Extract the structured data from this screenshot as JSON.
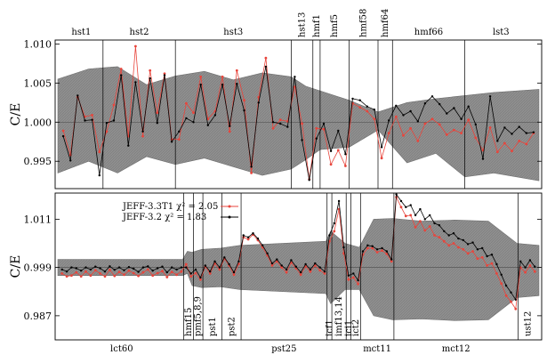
{
  "chart_data": [
    {
      "panel": "top",
      "type": "line",
      "ylabel": "C/E",
      "ylim": [
        0.9915,
        1.0105
      ],
      "yticks": [
        0.995,
        1.0,
        1.005,
        1.01
      ],
      "ytick_labels": [
        "0.995",
        "1.000",
        "1.005",
        "1.010"
      ],
      "grid": false,
      "reference_line": 1.0,
      "group_labels_position": "top",
      "groups": [
        {
          "label": "hst1",
          "start": 0,
          "end": 6
        },
        {
          "label": "hst2",
          "start": 6,
          "end": 16
        },
        {
          "label": "hst3",
          "start": 16,
          "end": 32
        },
        {
          "label": "hst13",
          "start": 32,
          "end": 35
        },
        {
          "label": "hmf1",
          "start": 35,
          "end": 36
        },
        {
          "label": "hmf5",
          "start": 36,
          "end": 40
        },
        {
          "label": "hmf58",
          "start": 40,
          "end": 44
        },
        {
          "label": "hmf64",
          "start": 44,
          "end": 46
        },
        {
          "label": "hmf66",
          "start": 46,
          "end": 56
        },
        {
          "label": "lst3",
          "start": 56,
          "end": 66
        }
      ],
      "uncertainty_band": {
        "x": [
          0,
          4,
          8,
          12,
          16,
          20,
          24,
          28,
          32,
          34,
          36,
          40,
          44,
          48,
          52,
          56,
          60,
          65
        ],
        "upper": [
          1.0055,
          1.0068,
          1.0071,
          1.0048,
          1.0059,
          1.0065,
          1.0054,
          1.0063,
          1.0058,
          1.0046,
          1.004,
          1.0028,
          1.0013,
          1.0025,
          1.003,
          1.0034,
          1.0038,
          1.0042
        ],
        "lower": [
          0.9935,
          0.995,
          0.9935,
          0.9956,
          0.9946,
          0.9954,
          0.9943,
          0.9932,
          0.994,
          0.9952,
          0.9965,
          0.9968,
          0.999,
          0.9948,
          0.996,
          0.993,
          0.9935,
          0.9925
        ]
      },
      "series": [
        {
          "name": "JEFF-3.3T1",
          "color": "#e8453c",
          "values": [
            0.9989,
            0.9958,
            1.0032,
            1.0007,
            1.0009,
            0.9962,
            0.9988,
            1.0022,
            1.0068,
            0.9982,
            1.0097,
            0.9982,
            1.0066,
            1.0012,
            1.0062,
            0.9978,
            0.9978,
            1.0024,
            1.0012,
            1.0058,
            1.0004,
            1.0014,
            1.0058,
            0.9988,
            1.0066,
            1.0028,
            0.9935,
            1.0032,
            1.0082,
            0.9992,
            1.0003,
            1.0001,
            1.0045,
            0.9998,
            0.9927,
            0.9992,
            0.9991,
            0.9946,
            0.9964,
            0.9944,
            1.0024,
            1.0019,
            1.0014,
            1.0004,
            0.9954,
            0.9986,
            1.0007,
            0.9983,
            0.9992,
            0.9976,
            0.9998,
            1.0004,
            0.9997,
            0.9984,
            0.999,
            0.9986,
            1.0003,
            0.998,
            0.9964,
            0.9993,
            0.9962,
            0.9973,
            0.9963,
            0.9976,
            0.9972,
            0.9986
          ]
        },
        {
          "name": "JEFF-3.2",
          "color": "#000000",
          "values": [
            0.9982,
            0.9951,
            1.0034,
            1.0002,
            1.0003,
            0.9932,
            0.9999,
            1.0002,
            1.006,
            0.997,
            1.0051,
            0.9988,
            1.0056,
            0.9999,
            1.006,
            0.9975,
            0.9988,
            1.0005,
            1.0,
            1.0048,
            0.9996,
            1.0009,
            1.0048,
            0.9995,
            1.0049,
            1.0015,
            0.9943,
            1.0025,
            1.0071,
            1.0,
            0.9998,
            0.9994,
            1.0058,
            0.9977,
            0.9926,
            0.9979,
            0.9998,
            0.9963,
            0.9989,
            0.9959,
            1.003,
            1.0028,
            1.002,
            1.0016,
            0.9968,
            1.0002,
            1.0021,
            1.0009,
            1.0014,
            1.0001,
            1.0024,
            1.0033,
            1.0023,
            1.0011,
            1.0018,
            1.0004,
            1.002,
            0.9997,
            0.9953,
            1.0033,
            0.9976,
            0.9993,
            0.9985,
            0.9994,
            0.9986,
            0.9987
          ]
        }
      ]
    },
    {
      "panel": "bottom",
      "type": "line",
      "ylabel": "C/E",
      "ylim": [
        0.981,
        1.0175
      ],
      "yticks": [
        0.987,
        0.999,
        1.011
      ],
      "ytick_labels": [
        "0.987",
        "0.999",
        "1.011"
      ],
      "grid": false,
      "reference_line": 0.999,
      "group_labels_position": "bottom",
      "legend_position": "top-left",
      "groups": [
        {
          "label": "lct60",
          "start": 0,
          "end": 26
        },
        {
          "label": "hmf15",
          "start": 26,
          "end": 28
        },
        {
          "label": "pmf5,8,9",
          "start": 28,
          "end": 30
        },
        {
          "label": "pst1",
          "start": 30,
          "end": 34
        },
        {
          "label": "pst2",
          "start": 34,
          "end": 38
        },
        {
          "label": "pst25",
          "start": 38,
          "end": 56
        },
        {
          "label": "icf1",
          "start": 56,
          "end": 57
        },
        {
          "label": "imf13,14",
          "start": 57,
          "end": 60
        },
        {
          "label": "ici1",
          "start": 60,
          "end": 61
        },
        {
          "label": "ict2",
          "start": 61,
          "end": 63
        },
        {
          "label": "mct11",
          "start": 63,
          "end": 70
        },
        {
          "label": "mct12",
          "start": 70,
          "end": 96
        },
        {
          "label": "ust12",
          "start": 96,
          "end": 100
        }
      ],
      "uncertainty_band": {
        "x": [
          0,
          26,
          27,
          28,
          30,
          34,
          38,
          56,
          57,
          60,
          63,
          66,
          70,
          76,
          83,
          90,
          96,
          100
        ],
        "upper": [
          1.001,
          1.001,
          1.003,
          1.0028,
          1.0035,
          1.0038,
          1.0045,
          1.0055,
          1.008,
          1.005,
          1.004,
          1.011,
          1.0112,
          1.0105,
          1.0108,
          1.0105,
          1.005,
          1.0045
        ],
        "lower": [
          0.997,
          0.997,
          0.9975,
          0.9945,
          0.994,
          0.9942,
          0.9935,
          0.9925,
          0.99,
          0.9935,
          0.9935,
          0.987,
          0.986,
          0.9862,
          0.9858,
          0.986,
          0.9915,
          0.992
        ]
      },
      "series": [
        {
          "name": "JEFF-3.3T1",
          "color": "#e8453c",
          "label_text": "JEFF-3.3T1 χ² = 2.05",
          "values": [
            0.9975,
            0.9968,
            0.997,
            0.9978,
            0.9968,
            0.998,
            0.997,
            0.9983,
            0.9975,
            0.9968,
            0.9984,
            0.9969,
            0.9979,
            0.9972,
            0.9982,
            0.9976,
            0.9969,
            0.9978,
            0.9985,
            0.997,
            0.9976,
            0.9981,
            0.9966,
            0.9979,
            0.9972,
            0.998,
            0.9998,
            0.9968,
            0.9976,
            0.996,
            0.9992,
            0.9975,
            1.0,
            0.9985,
            1.0012,
            0.9995,
            0.9972,
            0.9999,
            1.0065,
            1.006,
            1.0072,
            1.0058,
            1.004,
            1.002,
            0.9995,
            1.0005,
            0.999,
            0.9978,
            1.0002,
            0.9988,
            0.9972,
            0.9993,
            0.998,
            0.9995,
            0.9983,
            0.9975,
            1.0055,
            1.008,
            1.0135,
            1.0025,
            0.996,
            0.9965,
            0.9949,
            1.0022,
            1.0038,
            1.0038,
            1.0028,
            1.0032,
            1.0024,
            1.0005,
            1.0165,
            1.014,
            1.0118,
            1.012,
            1.009,
            1.0105,
            1.0082,
            1.0092,
            1.007,
            1.0065,
            1.0055,
            1.0045,
            1.005,
            1.004,
            1.0035,
            1.0025,
            1.003,
            1.0012,
            1.0015,
            0.9995,
            1.0,
            0.9975,
            0.995,
            0.992,
            0.9905,
            0.9887,
            0.999,
            0.9978,
            0.9995,
            0.998
          ]
        },
        {
          "name": "JEFF-3.2",
          "color": "#000000",
          "label_text": "JEFF-3.2 χ² = 1.83",
          "values": [
            0.9985,
            0.998,
            0.999,
            0.9988,
            0.9982,
            0.999,
            0.9985,
            0.9992,
            0.9988,
            0.998,
            0.9993,
            0.9984,
            0.999,
            0.9983,
            0.9991,
            0.9987,
            0.9979,
            0.999,
            0.9993,
            0.9982,
            0.9988,
            0.9992,
            0.9978,
            0.999,
            0.9985,
            0.999,
            0.999,
            0.9975,
            0.9985,
            0.9965,
            0.9995,
            0.998,
            1.0005,
            0.999,
            1.0015,
            0.9998,
            0.9978,
            1.0005,
            1.007,
            1.0065,
            1.0075,
            1.0062,
            1.0045,
            1.0025,
            1.0,
            1.001,
            0.9995,
            0.9985,
            1.0008,
            0.9992,
            0.9978,
            0.9998,
            0.9985,
            1.0,
            0.999,
            0.998,
            1.007,
            1.01,
            1.0155,
            1.004,
            0.997,
            0.9975,
            0.9958,
            1.003,
            1.0045,
            1.0043,
            1.0035,
            1.0038,
            1.003,
            1.001,
            1.0172,
            1.0155,
            1.014,
            1.0145,
            1.012,
            1.0135,
            1.011,
            1.012,
            1.01,
            1.0095,
            1.008,
            1.007,
            1.0075,
            1.0062,
            1.0058,
            1.0048,
            1.0052,
            1.0035,
            1.0038,
            1.0018,
            1.0022,
            0.9998,
            0.9972,
            0.9945,
            0.9928,
            0.991,
            1.0005,
            0.999,
            1.0008,
            0.9992
          ]
        }
      ]
    }
  ]
}
